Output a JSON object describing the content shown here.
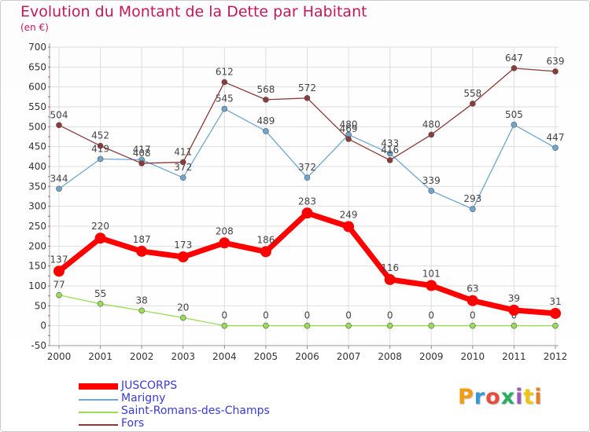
{
  "title": "Evolution du Montant de la Dette par Habitant",
  "subtitle": "(en €)",
  "logo": {
    "text": "Proxiti",
    "colors": [
      "#f39c12",
      "#3498db",
      "#e74c3c",
      "#27ae60",
      "#9b59b6",
      "#f1c40f",
      "#e67e22"
    ]
  },
  "chart_data": {
    "type": "line",
    "title": "Evolution du Montant de la Dette par Habitant",
    "subtitle": "(en €)",
    "x": [
      "2000",
      "2001",
      "2002",
      "2003",
      "2004",
      "2005",
      "2006",
      "2007",
      "2008",
      "2009",
      "2010",
      "2011",
      "2012"
    ],
    "ylim": [
      -50,
      700
    ],
    "yticks": [
      "-50",
      "0",
      "50",
      "100",
      "150",
      "200",
      "250",
      "300",
      "350",
      "400",
      "450",
      "500",
      "550",
      "600",
      "650",
      "700"
    ],
    "grid": true,
    "legend": "bottom-left",
    "series": [
      {
        "name": "JUSCORPS",
        "color": "#ff0000",
        "values": [
          137,
          220,
          187,
          173,
          208,
          186,
          283,
          249,
          116,
          101,
          63,
          39,
          31
        ],
        "labels": [
          "137",
          "220",
          "187",
          "173",
          "208",
          "186",
          "283",
          "249",
          "116",
          "101",
          "63",
          "39",
          "31"
        ]
      },
      {
        "name": "Marigny",
        "color": "#6ea6cf",
        "values": [
          344,
          419,
          417,
          372,
          545,
          489,
          372,
          480,
          433,
          339,
          293,
          505,
          447
        ],
        "labels": [
          "344",
          "419",
          "417",
          "372",
          "545",
          "489",
          "372",
          "480",
          "433",
          "339",
          "293",
          "505",
          "447"
        ]
      },
      {
        "name": "Saint-Romans-des-Champs",
        "color": "#99dd55",
        "values": [
          77,
          55,
          38,
          20,
          0,
          0,
          0,
          0,
          0,
          0,
          0,
          0,
          0
        ],
        "labels": [
          "77",
          "55",
          "38",
          "20",
          "0",
          "0",
          "0",
          "0",
          "0",
          "0",
          "0",
          "0",
          "0"
        ]
      },
      {
        "name": "Fors",
        "color": "#8b3a3a",
        "values": [
          504,
          452,
          408,
          411,
          612,
          568,
          572,
          469,
          416,
          480,
          558,
          647,
          639
        ],
        "labels": [
          "504",
          "452",
          "408",
          "411",
          "612",
          "568",
          "572",
          "469",
          "416",
          "480",
          "558",
          "647",
          "639"
        ]
      }
    ]
  }
}
